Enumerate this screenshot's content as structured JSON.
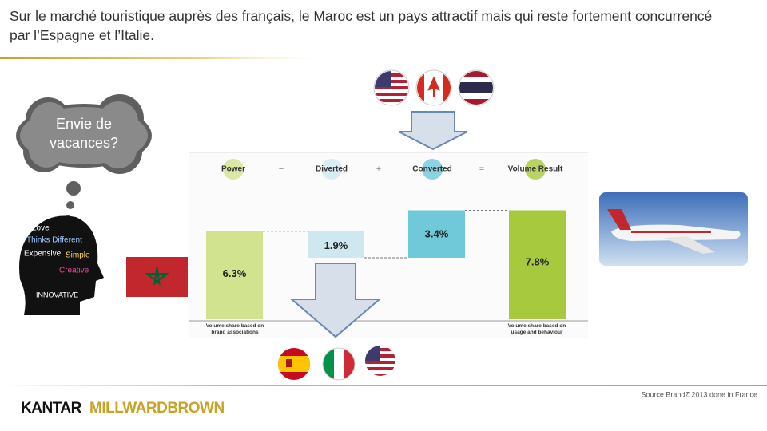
{
  "title": "Sur le marché touristique auprès des français, le Maroc est un pays attractif mais qui reste fortement concurrencé par l’Espagne et l’Italie.",
  "thought": "Envie de vacances?",
  "head_words": [
    "Love",
    "Thinks Different",
    "Expensive",
    "Simple",
    "Creative",
    "INNOVATIVE"
  ],
  "chart_data": {
    "type": "waterfall",
    "categories": [
      "Power",
      "Diverted",
      "Converted",
      "Volume Result"
    ],
    "operators": [
      "−",
      "+",
      "="
    ],
    "measures": [
      "absolute",
      "relative",
      "relative",
      "total"
    ],
    "values": [
      6.3,
      -1.9,
      3.4,
      7.8
    ],
    "value_labels": [
      "6.3%",
      "1.9%",
      "3.4%",
      "7.8%"
    ],
    "colors": [
      "#d1e38e",
      "#cfe8f0",
      "#6fc9d9",
      "#a7c93d"
    ],
    "ylim": [
      0,
      12
    ],
    "footnotes": [
      "Volume share based on brand associations",
      "Volume share based on usage and behaviour"
    ]
  },
  "source": "Source BrandZ 2013 done in France",
  "logo": [
    "KANTAR",
    "MILLWARDBROWN"
  ]
}
